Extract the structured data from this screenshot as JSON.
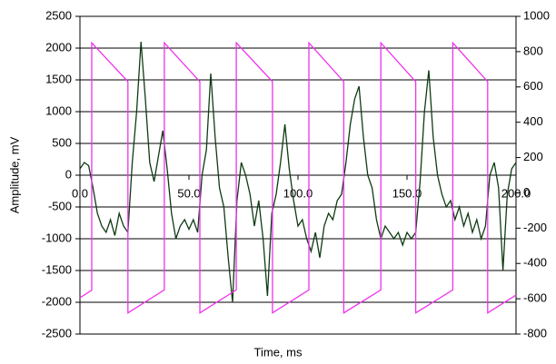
{
  "chart_data": {
    "type": "line",
    "xlabel": "Time, ms",
    "ylabel": "Amplitude, mV",
    "xlim": [
      0,
      200
    ],
    "xticks": [
      {
        "value": 0,
        "label": "0.0"
      },
      {
        "value": 50,
        "label": "50.0"
      },
      {
        "value": 100,
        "label": "100.0"
      },
      {
        "value": 150,
        "label": "150.0"
      },
      {
        "value": 200,
        "label": "200.0"
      }
    ],
    "ylim": [
      -2500,
      2500
    ],
    "yticks": [
      -2500,
      -2000,
      -1500,
      -1000,
      -500,
      0,
      500,
      1000,
      1500,
      2000,
      2500
    ],
    "y2lim": [
      -800,
      1000
    ],
    "y2ticks": [
      -800,
      -600,
      -400,
      -200,
      0,
      200,
      400,
      600,
      800,
      1000
    ],
    "grid": true,
    "series": [
      {
        "color": "#0e3b12",
        "x": [
          0,
          2,
          4,
          6,
          8,
          10,
          12,
          14,
          16,
          18,
          20,
          22,
          24,
          26,
          28,
          30,
          32,
          34,
          36,
          38,
          40,
          42,
          44,
          46,
          48,
          50,
          52,
          54,
          56,
          58,
          60,
          62,
          64,
          66,
          68,
          70,
          72,
          74,
          76,
          78,
          80,
          82,
          84,
          86,
          88,
          90,
          92,
          94,
          96,
          98,
          100,
          102,
          104,
          106,
          108,
          110,
          112,
          114,
          116,
          118,
          120,
          122,
          124,
          126,
          128,
          130,
          132,
          134,
          136,
          138,
          140,
          142,
          144,
          146,
          148,
          150,
          152,
          154,
          156,
          158,
          160,
          162,
          164,
          166,
          168,
          170,
          172,
          174,
          176,
          178,
          180,
          182,
          184,
          186,
          188,
          190,
          192,
          194,
          196,
          198,
          200
        ],
        "values": [
          100,
          200,
          150,
          -200,
          -600,
          -800,
          -900,
          -700,
          -950,
          -600,
          -800,
          -900,
          200,
          1000,
          2100,
          1200,
          200,
          -100,
          300,
          700,
          100,
          -600,
          -1000,
          -800,
          -700,
          -850,
          -700,
          -900,
          0,
          400,
          1600,
          600,
          -200,
          -500,
          -1300,
          -2000,
          -400,
          200,
          0,
          -300,
          -800,
          -400,
          -1000,
          -1900,
          -600,
          -300,
          200,
          800,
          100,
          -400,
          -800,
          -700,
          -1000,
          -1200,
          -900,
          -1300,
          -800,
          -600,
          -700,
          -400,
          -300,
          200,
          800,
          1200,
          1400,
          600,
          0,
          -200,
          -700,
          -1000,
          -800,
          -900,
          -1000,
          -900,
          -1100,
          -900,
          -1000,
          -900,
          -100,
          1000,
          1650,
          600,
          0,
          -300,
          -500,
          -400,
          -700,
          -500,
          -800,
          -600,
          -900,
          -700,
          -1000,
          -800,
          0,
          200,
          -200,
          -1500,
          -300,
          100,
          200
        ]
      },
      {
        "color": "#ee33ee",
        "axis": "y2",
        "x": [
          0,
          5.4,
          5.4,
          22,
          22,
          38.7,
          38.7,
          55,
          55,
          71.7,
          71.7,
          88.3,
          88.3,
          105,
          105,
          121,
          121,
          138,
          138,
          154,
          154,
          171,
          171,
          187,
          187,
          200
        ],
        "values": [
          -594,
          -552,
          850,
          630,
          -680,
          -550,
          850,
          630,
          -680,
          -550,
          850,
          630,
          -680,
          -550,
          850,
          630,
          -680,
          -550,
          850,
          630,
          -680,
          -550,
          850,
          630,
          -680,
          -579
        ]
      }
    ]
  }
}
